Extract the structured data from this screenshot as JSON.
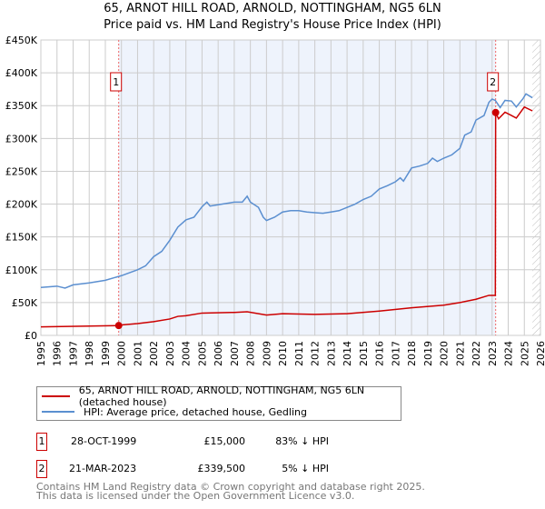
{
  "chart_data": {
    "type": "line",
    "title": "65, ARNOT HILL ROAD, ARNOLD, NOTTINGHAM, NG5 6LN",
    "subtitle": "Price paid vs. HM Land Registry's House Price Index (HPI)",
    "xlim": [
      1995,
      2026
    ],
    "ylim": [
      0,
      450000
    ],
    "yticks": [
      0,
      50000,
      100000,
      150000,
      200000,
      250000,
      300000,
      350000,
      400000,
      450000
    ],
    "ytick_labels": [
      "£0",
      "£50K",
      "£100K",
      "£150K",
      "£200K",
      "£250K",
      "£300K",
      "£350K",
      "£400K",
      "£450K"
    ],
    "xticks": [
      1995,
      1996,
      1997,
      1998,
      1999,
      2000,
      2001,
      2002,
      2003,
      2004,
      2005,
      2006,
      2007,
      2008,
      2009,
      2010,
      2011,
      2012,
      2013,
      2014,
      2015,
      2016,
      2017,
      2018,
      2019,
      2020,
      2021,
      2022,
      2023,
      2024,
      2025,
      2026
    ],
    "grid": true,
    "series": [
      {
        "name": "65, ARNOT HILL ROAD, ARNOLD, NOTTINGHAM, NG5 6LN (detached house)",
        "color": "#cc0000",
        "x": [
          1995,
          1999.83,
          2000,
          2001,
          2002,
          2003,
          2003.5,
          2004,
          2005,
          2007,
          2007.8,
          2009,
          2010,
          2012,
          2014,
          2016,
          2018,
          2020,
          2021,
          2022,
          2022.8,
          2023.2,
          2023.22,
          2023.4,
          2023.8,
          2024.2,
          2024.5,
          2025,
          2025.5
        ],
        "y": [
          13000,
          15000,
          16000,
          18000,
          21000,
          25000,
          29000,
          30000,
          34000,
          35000,
          36000,
          31000,
          33000,
          32000,
          33000,
          37000,
          42000,
          46000,
          50000,
          55000,
          61000,
          61000,
          339500,
          330000,
          340000,
          335000,
          331000,
          348000,
          342000
        ]
      },
      {
        "name": "HPI: Average price, detached house, Gedling",
        "color": "#5b8fd0",
        "x": [
          1995,
          1996,
          1996.5,
          1997,
          1998,
          1999,
          2000,
          2001,
          2001.5,
          2002,
          2002.5,
          2003,
          2003.5,
          2004,
          2004.5,
          2005,
          2005.3,
          2005.5,
          2006,
          2007,
          2007.5,
          2007.8,
          2008,
          2008.5,
          2008.8,
          2009,
          2009.5,
          2010,
          2010.5,
          2011,
          2011.5,
          2012,
          2012.5,
          2013,
          2013.5,
          2014,
          2014.5,
          2015,
          2015.5,
          2016,
          2016.5,
          2017,
          2017.3,
          2017.5,
          2018,
          2018.5,
          2019,
          2019.3,
          2019.6,
          2020,
          2020.5,
          2021,
          2021.3,
          2021.7,
          2022,
          2022.5,
          2022.8,
          2023,
          2023.2,
          2023.5,
          2023.8,
          2024.2,
          2024.5,
          2024.9,
          2025.1,
          2025.5
        ],
        "y": [
          73000,
          75000,
          72000,
          77000,
          80000,
          84000,
          91000,
          100000,
          106000,
          120000,
          128000,
          145000,
          165000,
          176000,
          180000,
          196000,
          203000,
          197000,
          199000,
          203000,
          203000,
          212000,
          203000,
          195000,
          180000,
          175000,
          180000,
          188000,
          190000,
          190000,
          188000,
          187000,
          186000,
          188000,
          190000,
          195000,
          200000,
          207000,
          212000,
          223000,
          228000,
          234000,
          240000,
          235000,
          255000,
          258000,
          262000,
          270000,
          265000,
          270000,
          275000,
          285000,
          305000,
          310000,
          328000,
          335000,
          355000,
          360000,
          358000,
          347000,
          358000,
          357000,
          348000,
          360000,
          368000,
          362000
        ]
      }
    ],
    "annotations": [
      {
        "label": "1",
        "x": 1999.83,
        "y": 15000
      },
      {
        "label": "2",
        "x": 2023.22,
        "y": 339500
      }
    ],
    "shaded_range": [
      1999.83,
      2023.22
    ],
    "hatched_from": 2025.5,
    "legend_placement": "bottom"
  },
  "transactions": [
    {
      "num": "1",
      "date": "28-OCT-1999",
      "price": "£15,000",
      "hpi": "83% ↓ HPI"
    },
    {
      "num": "2",
      "date": "21-MAR-2023",
      "price": "£339,500",
      "hpi": "5% ↓ HPI"
    }
  ],
  "footer": {
    "line1": "Contains HM Land Registry data © Crown copyright and database right 2025.",
    "line2": "This data is licensed under the Open Government Licence v3.0."
  }
}
